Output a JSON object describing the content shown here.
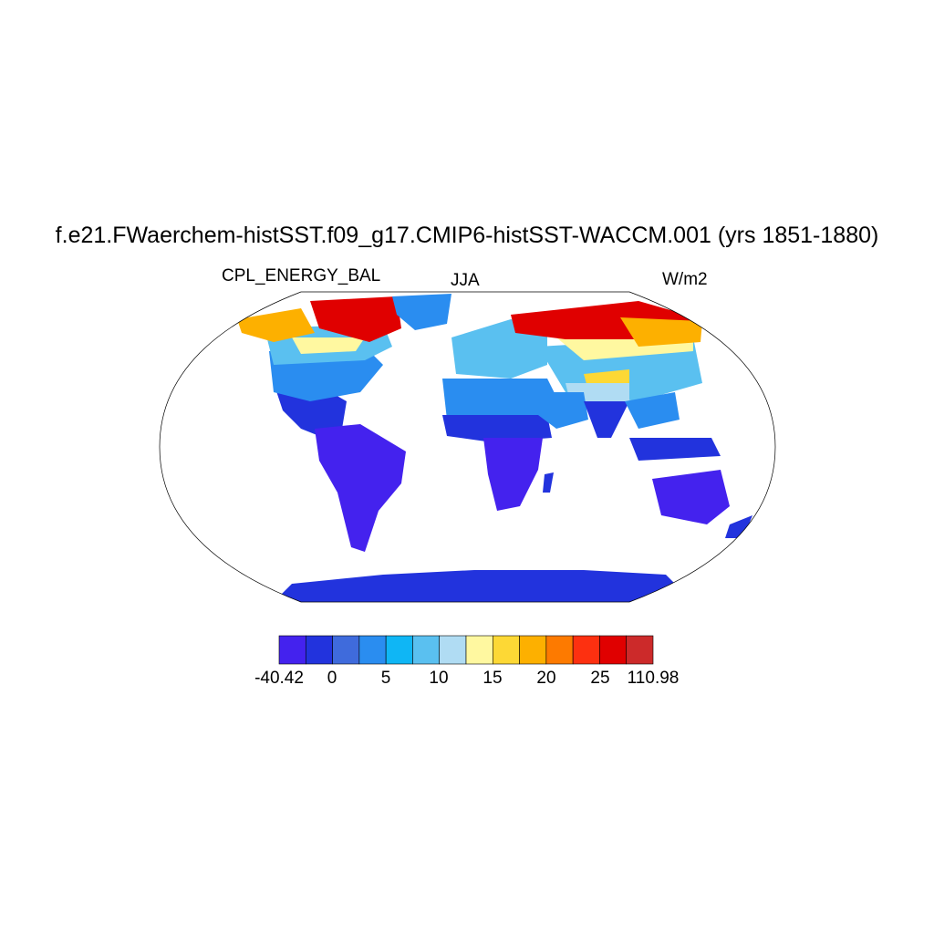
{
  "title": "f.e21.FWaerchem-histSST.f09_g17.CMIP6-histSST-WACCM.001 (yrs 1851-1880)",
  "subtitle_left": "CPL_ENERGY_BAL",
  "subtitle_center": "JJA",
  "subtitle_right": "W/m2",
  "colorbar": {
    "colors": [
      "#4422ee",
      "#2233dd",
      "#3f6bdc",
      "#2a8df0",
      "#0fb6f5",
      "#5ac0f0",
      "#b0dcf3",
      "#fff8a0",
      "#fdd835",
      "#fdb000",
      "#fd7a00",
      "#fd3010",
      "#e00000",
      "#cc2a2a"
    ],
    "labels": [
      "-40.42",
      "0",
      "5",
      "10",
      "15",
      "20",
      "25",
      "110.98"
    ]
  },
  "map_colors": {
    "ocean": "#ffffff",
    "outline": "#000000",
    "tropics": "#2233dd",
    "south_tropics": "#4422ee",
    "subtropics": "#2a8df0",
    "midlat": "#5ac0f0",
    "light": "#b0dcf3",
    "yellow": "#fff8a0",
    "gold": "#fdd835",
    "orange": "#fdb000",
    "red": "#e00000",
    "antarctica": "#2233dd"
  }
}
